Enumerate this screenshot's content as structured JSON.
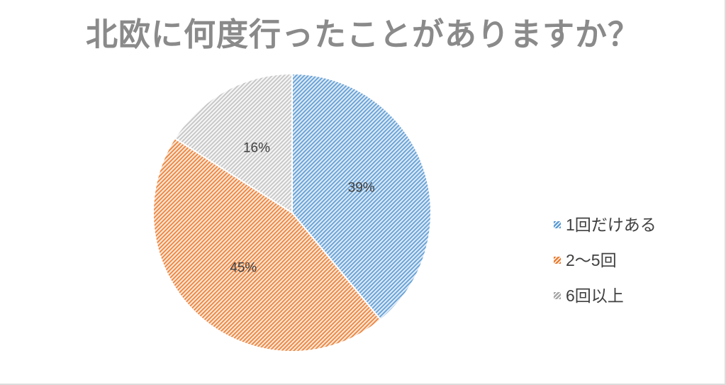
{
  "chart_data": {
    "type": "pie",
    "title": "北欧に何度行ったことがありますか？",
    "legend_position": "right",
    "start_angle_deg": 0,
    "direction": "clockwise",
    "fill_style": "diagonal-hatch",
    "label_format": "percent",
    "slices": [
      {
        "label": "1回だけある",
        "value": 39,
        "display": "39%",
        "stripe_color": "#5B9BD5",
        "bg_color": "#DEEAF6",
        "marker_color": "#5B9BD5"
      },
      {
        "label": "2〜5回",
        "value": 45,
        "display": "45%",
        "stripe_color": "#ED7D31",
        "bg_color": "#FBE7D8",
        "marker_color": "#ED7D31"
      },
      {
        "label": "6回以上",
        "value": 16,
        "display": "16%",
        "stripe_color": "#C2C2C2",
        "bg_color": "#F6F6F6",
        "marker_color": "#A6A6A6"
      }
    ],
    "colors": {
      "title_text": "#8A8A8A",
      "label_text": "#404040",
      "slice_border": "#FFFFFF",
      "frame_border": "#DCDCDC"
    }
  }
}
